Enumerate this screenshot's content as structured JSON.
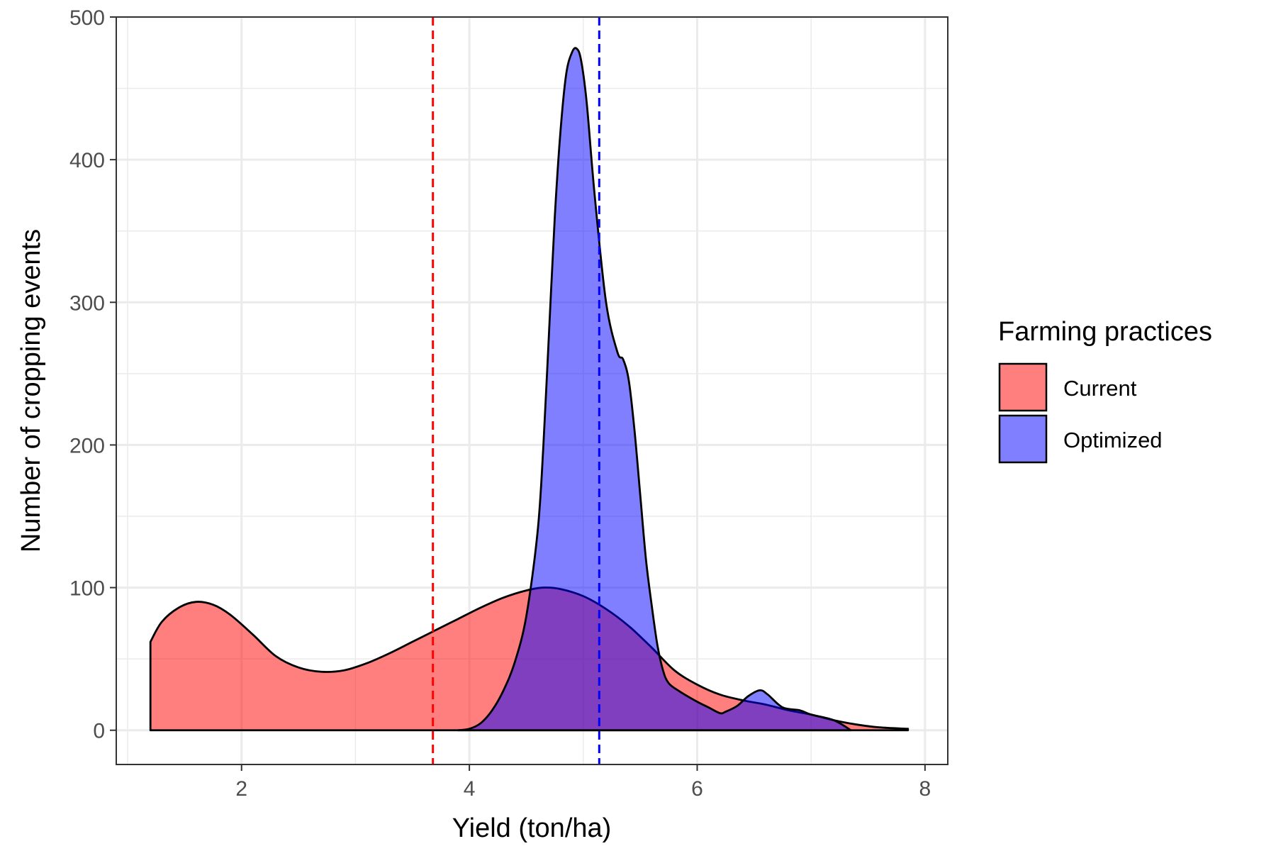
{
  "chart_data": {
    "type": "area",
    "xlabel": "Yield (ton/ha)",
    "ylabel": "Number of cropping events",
    "xlim": [
      0.9,
      8.2
    ],
    "ylim": [
      -24,
      500
    ],
    "x_ticks": [
      2,
      4,
      6,
      8
    ],
    "y_ticks": [
      0,
      100,
      200,
      300,
      400,
      500
    ],
    "grid": true,
    "legend": {
      "title": "Farming practices",
      "position": "right",
      "entries": [
        "Current",
        "Optimized"
      ]
    },
    "series": [
      {
        "name": "Current",
        "fill": "#ff0000",
        "fill_opacity": 0.5,
        "x": [
          1.2,
          1.3,
          1.45,
          1.6,
          1.75,
          1.9,
          2.1,
          2.3,
          2.5,
          2.7,
          2.9,
          3.1,
          3.3,
          3.5,
          3.7,
          3.9,
          4.1,
          4.3,
          4.5,
          4.65,
          4.8,
          5.0,
          5.2,
          5.4,
          5.6,
          5.8,
          6.0,
          6.2,
          6.4,
          6.6,
          6.8,
          7.0,
          7.2,
          7.4,
          7.6,
          7.85
        ],
        "y": [
          62,
          76,
          86,
          90,
          88,
          81,
          67,
          52,
          44,
          41,
          42,
          47,
          54,
          62,
          70,
          78,
          86,
          93,
          98,
          100,
          99,
          94,
          85,
          73,
          58,
          42,
          32,
          25,
          21,
          18,
          14,
          11,
          7,
          4,
          2,
          1
        ]
      },
      {
        "name": "Optimized",
        "fill": "#0000ff",
        "fill_opacity": 0.5,
        "x": [
          3.9,
          4.0,
          4.1,
          4.2,
          4.3,
          4.4,
          4.5,
          4.6,
          4.65,
          4.7,
          4.75,
          4.8,
          4.85,
          4.9,
          4.94,
          4.98,
          5.03,
          5.1,
          5.2,
          5.3,
          5.35,
          5.4,
          5.45,
          5.5,
          5.55,
          5.6,
          5.65,
          5.7,
          5.75,
          5.85,
          6.0,
          6.1,
          6.2,
          6.25,
          6.35,
          6.45,
          6.55,
          6.62,
          6.75,
          6.9,
          7.0,
          7.2,
          7.35
        ],
        "y": [
          0,
          1,
          5,
          14,
          28,
          48,
          80,
          140,
          200,
          280,
          360,
          420,
          460,
          475,
          478,
          470,
          440,
          375,
          300,
          265,
          260,
          245,
          210,
          165,
          120,
          88,
          60,
          42,
          33,
          27,
          20,
          16,
          12,
          13,
          17,
          24,
          28,
          25,
          16,
          14,
          11,
          7,
          0
        ]
      }
    ],
    "vlines": [
      {
        "x": 3.68,
        "color": "#ff0000",
        "style": "dashed"
      },
      {
        "x": 5.14,
        "color": "#0000ff",
        "style": "dashed"
      }
    ]
  }
}
